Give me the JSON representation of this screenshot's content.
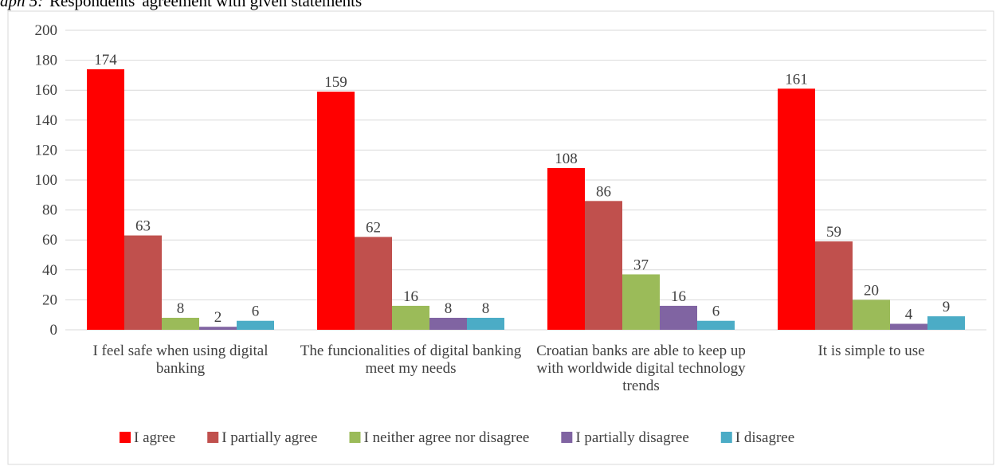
{
  "caption_label": "aph 5:",
  "caption": "Respondents' agreement with given statements",
  "chart_data": {
    "type": "bar",
    "categories": [
      "I feel safe when using digital banking",
      "The funcionalities of digital banking meet my needs",
      "Croatian banks are able to keep up with worldwide digital technology trends",
      "It is simple to use"
    ],
    "series": [
      {
        "name": "I agree",
        "color": "#ff0000",
        "values": [
          174,
          159,
          108,
          161
        ]
      },
      {
        "name": "I partially agree",
        "color": "#c0504d",
        "values": [
          63,
          62,
          86,
          59
        ]
      },
      {
        "name": "I neither agree nor disagree",
        "color": "#9bbb59",
        "values": [
          8,
          16,
          37,
          20
        ]
      },
      {
        "name": "I partially disagree",
        "color": "#8064a2",
        "values": [
          2,
          8,
          16,
          4
        ]
      },
      {
        "name": "I disagree",
        "color": "#4bacc6",
        "values": [
          6,
          8,
          6,
          9
        ]
      }
    ],
    "ylim": [
      0,
      200
    ],
    "yticks": [
      0,
      20,
      40,
      60,
      80,
      100,
      120,
      140,
      160,
      180,
      200
    ],
    "grid": true,
    "legend": "bottom"
  }
}
